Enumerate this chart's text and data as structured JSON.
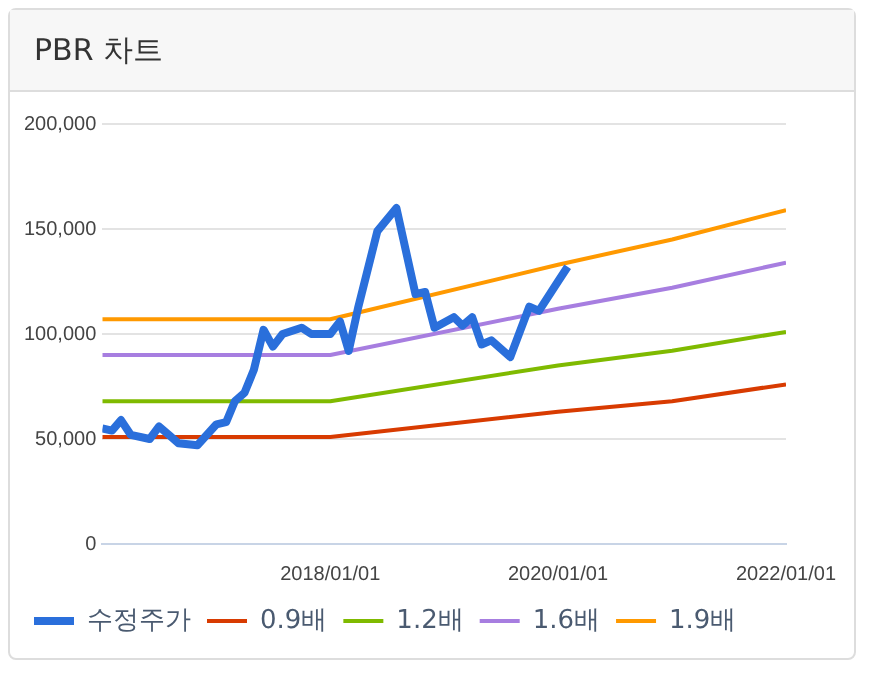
{
  "chart_data": {
    "type": "line",
    "title": "PBR 차트",
    "xlim": [
      "2016-01",
      "2022-01"
    ],
    "xticks": [
      {
        "value": "2018-01",
        "label": "2018/01/01"
      },
      {
        "value": "2020-01",
        "label": "2020/01/01"
      },
      {
        "value": "2022-01",
        "label": "2022/01/01"
      }
    ],
    "ylim": [
      0,
      200000
    ],
    "yticks": [
      0,
      {
        "value": 50000,
        "label": "50,000"
      },
      {
        "value": 100000,
        "label": "100,000"
      },
      {
        "value": 150000,
        "label": "150,000"
      },
      {
        "value": 200000,
        "label": "200,000"
      }
    ],
    "grid": "y",
    "legend": "bottom",
    "marker": "none",
    "line_style": "solid",
    "series": [
      {
        "name": "수정주가",
        "color": "#2a6fdb",
        "x": [
          "2016-01",
          "2016-02",
          "2016-03",
          "2016-04",
          "2016-06",
          "2016-07",
          "2016-08",
          "2016-09",
          "2016-11",
          "2017-01",
          "2017-02",
          "2017-03",
          "2017-04",
          "2017-05",
          "2017-06",
          "2017-07",
          "2017-08",
          "2017-10",
          "2017-11",
          "2018-01",
          "2018-02",
          "2018-03",
          "2018-04",
          "2018-06",
          "2018-08",
          "2018-10",
          "2018-11",
          "2018-12",
          "2019-02",
          "2019-03",
          "2019-04",
          "2019-05",
          "2019-06",
          "2019-08",
          "2019-10",
          "2019-11",
          "2020-01",
          "2020-02"
        ],
        "values": [
          55000,
          54000,
          59000,
          52000,
          50000,
          56000,
          52000,
          48000,
          47000,
          57000,
          58000,
          68000,
          72000,
          83000,
          102000,
          94000,
          100000,
          103000,
          100000,
          100000,
          106000,
          92000,
          113000,
          149000,
          160000,
          119000,
          120000,
          103000,
          108000,
          104000,
          108000,
          95000,
          97000,
          89000,
          113000,
          111000,
          125000,
          132000
        ]
      },
      {
        "name": "0.9배",
        "color": "#d83b01",
        "x": [
          "2016-01",
          "2018-01",
          "2020-01",
          "2021-01",
          "2022-01"
        ],
        "values": [
          51000,
          51000,
          63000,
          68000,
          76000
        ]
      },
      {
        "name": "1.2배",
        "color": "#7fba00",
        "x": [
          "2016-01",
          "2018-01",
          "2020-01",
          "2021-01",
          "2022-01"
        ],
        "values": [
          68000,
          68000,
          85000,
          92000,
          101000
        ]
      },
      {
        "name": "1.6배",
        "color": "#a77ee0",
        "x": [
          "2016-01",
          "2018-01",
          "2020-01",
          "2021-01",
          "2022-01"
        ],
        "values": [
          90000,
          90000,
          112000,
          122000,
          134000
        ]
      },
      {
        "name": "1.9배",
        "color": "#ff9900",
        "x": [
          "2016-01",
          "2018-01",
          "2020-01",
          "2021-01",
          "2022-01"
        ],
        "values": [
          107000,
          107000,
          133000,
          145000,
          159000
        ]
      }
    ]
  }
}
